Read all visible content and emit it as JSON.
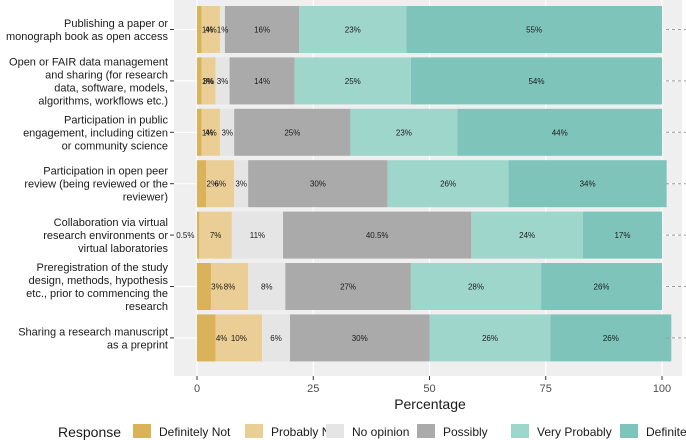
{
  "chart_data": {
    "type": "bar",
    "orientation": "horizontal",
    "stacked": true,
    "title": "",
    "xlabel": "Percentage",
    "ylabel": "",
    "xlim": [
      0,
      100
    ],
    "x_ticks": [
      "0",
      "25",
      "50",
      "75",
      "100"
    ],
    "categories": [
      [
        "Publishing a paper or",
        "monograph book as open access"
      ],
      [
        "Open or FAIR data management",
        "and sharing (for research",
        "data, software, models,",
        "algorithms, workflows etc.)"
      ],
      [
        "Participation in public",
        "engagement, including citizen",
        "or community science"
      ],
      [
        "Participation in open peer",
        "review (being reviewed or the",
        "reviewer)"
      ],
      [
        "Collaboration via virtual",
        "research environments or",
        "virtual laboratories"
      ],
      [
        "Preregistration of the study",
        "design, methods, hypothesis",
        "etc., prior to commencing the",
        "research"
      ],
      [
        "Sharing a research manuscript",
        "as a preprint"
      ]
    ],
    "legend": {
      "title": "Response",
      "position": "bottom",
      "entries": [
        "Definitely Not",
        "Probably Not",
        "No opinion",
        "Possibly",
        "Very Probably",
        "Definitely"
      ]
    },
    "colors": [
      "#dab25a",
      "#ebcd96",
      "#e5e5e5",
      "#aaaaaa",
      "#9fd6cc",
      "#7ec4bb"
    ],
    "series": [
      {
        "name": "Definitely Not",
        "values": [
          1,
          1,
          1,
          2,
          0.5,
          3,
          4
        ],
        "labels": [
          "1%",
          "1%",
          "1%",
          "2%",
          "0.5%",
          "3%",
          "4%"
        ]
      },
      {
        "name": "Probably Not",
        "values": [
          4,
          3,
          4,
          6,
          7,
          8,
          10
        ],
        "labels": [
          "4%",
          "3%",
          "4%",
          "6%",
          "7%",
          "8%",
          "10%"
        ]
      },
      {
        "name": "No opinion",
        "values": [
          1,
          3,
          3,
          3,
          11,
          8,
          6
        ],
        "labels": [
          "1%",
          "3%",
          "3%",
          "3%",
          "11%",
          "8%",
          "6%"
        ]
      },
      {
        "name": "Possibly",
        "values": [
          16,
          14,
          25,
          30,
          40.5,
          27,
          30
        ],
        "labels": [
          "16%",
          "14%",
          "25%",
          "30%",
          "40.5%",
          "27%",
          "30%"
        ]
      },
      {
        "name": "Very Probably",
        "values": [
          23,
          25,
          23,
          26,
          24,
          28,
          26
        ],
        "labels": [
          "23%",
          "25%",
          "23%",
          "26%",
          "24%",
          "28%",
          "26%"
        ]
      },
      {
        "name": "Definitely",
        "values": [
          55,
          54,
          44,
          34,
          17,
          26,
          26
        ],
        "labels": [
          "55%",
          "54%",
          "44%",
          "34%",
          "17%",
          "26%",
          "26%"
        ]
      }
    ]
  }
}
